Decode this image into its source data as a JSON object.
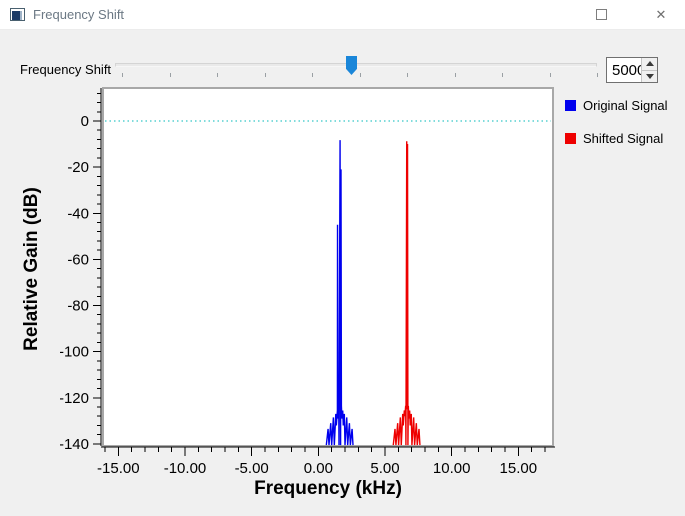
{
  "window": {
    "title": "Frequency Shift",
    "close_glyph": "✕"
  },
  "controls": {
    "slider_label": "Frequency Shift",
    "spinbox_value": "5000"
  },
  "chart_data": {
    "type": "line",
    "title": "",
    "xlabel": "Frequency (kHz)",
    "ylabel": "Relative Gain (dB)",
    "xlim": [
      -16.15,
      17.6
    ],
    "ylim": [
      -140.9,
      14.3
    ],
    "x_major_ticks": [
      -15,
      -10,
      -5,
      0,
      5,
      10,
      15
    ],
    "x_tick_labels": [
      "-15.00",
      "-10.00",
      "-5.00",
      "0.00",
      "5.00",
      "10.00",
      "15.00"
    ],
    "x_minor_step": 1,
    "y_major_ticks": [
      0,
      -20,
      -40,
      -60,
      -80,
      -100,
      -120,
      -140
    ],
    "y_tick_labels": [
      "0",
      "-20",
      "-40",
      "-60",
      "-80",
      "-100",
      "-120",
      "-140"
    ],
    "y_minor_step": 4,
    "grid": "off",
    "reference_line": {
      "y": 0,
      "style": "dotted",
      "color": "#00b8b8"
    },
    "legend_position": "right-top",
    "legend": [
      {
        "label": "Original Signal",
        "color": "#0000ee"
      },
      {
        "label": "Shifted Signal",
        "color": "#ee0000"
      }
    ],
    "series": [
      {
        "name": "Original Signal",
        "color": "#0000ee",
        "peak_khz": 1.65,
        "peak_db": -8.3,
        "points": [
          [
            0.6,
            -140.5
          ],
          [
            0.73,
            -133.5
          ],
          [
            0.8,
            -140.5
          ],
          [
            0.93,
            -131.0
          ],
          [
            1.0,
            -140.5
          ],
          [
            1.13,
            -128.5
          ],
          [
            1.2,
            -140.5
          ],
          [
            1.31,
            -127.0
          ],
          [
            1.35,
            -132.0
          ],
          [
            1.43,
            -125.5
          ],
          [
            1.44,
            -45.0
          ],
          [
            1.47,
            -129.0
          ],
          [
            1.53,
            -123.5
          ],
          [
            1.55,
            -140.5
          ],
          [
            1.63,
            -8.3
          ],
          [
            1.67,
            -140.5
          ],
          [
            1.7,
            -21.0
          ],
          [
            1.73,
            -123.5
          ],
          [
            1.77,
            -129.0
          ],
          [
            1.83,
            -125.5
          ],
          [
            1.87,
            -132.0
          ],
          [
            1.95,
            -127.0
          ],
          [
            2.0,
            -140.5
          ],
          [
            2.13,
            -128.5
          ],
          [
            2.2,
            -140.5
          ],
          [
            2.33,
            -131.0
          ],
          [
            2.4,
            -140.5
          ],
          [
            2.53,
            -133.5
          ],
          [
            2.6,
            -140.5
          ]
        ]
      },
      {
        "name": "Shifted Signal",
        "color": "#ee0000",
        "peak_khz": 6.67,
        "peak_db": -8.8,
        "points": [
          [
            5.62,
            -140.5
          ],
          [
            5.75,
            -133.5
          ],
          [
            5.82,
            -140.5
          ],
          [
            5.95,
            -131.0
          ],
          [
            6.02,
            -140.5
          ],
          [
            6.15,
            -128.5
          ],
          [
            6.22,
            -140.5
          ],
          [
            6.33,
            -127.0
          ],
          [
            6.37,
            -132.0
          ],
          [
            6.45,
            -125.5
          ],
          [
            6.49,
            -128.0
          ],
          [
            6.55,
            -123.5
          ],
          [
            6.57,
            -140.5
          ],
          [
            6.63,
            -8.8
          ],
          [
            6.66,
            -125.0
          ],
          [
            6.69,
            -10.0
          ],
          [
            6.72,
            -140.5
          ],
          [
            6.75,
            -123.5
          ],
          [
            6.79,
            -129.0
          ],
          [
            6.85,
            -125.5
          ],
          [
            6.89,
            -132.0
          ],
          [
            6.97,
            -127.0
          ],
          [
            7.02,
            -140.5
          ],
          [
            7.15,
            -128.5
          ],
          [
            7.22,
            -140.5
          ],
          [
            7.35,
            -131.0
          ],
          [
            7.42,
            -140.5
          ],
          [
            7.55,
            -133.5
          ],
          [
            7.62,
            -140.5
          ]
        ]
      }
    ]
  }
}
